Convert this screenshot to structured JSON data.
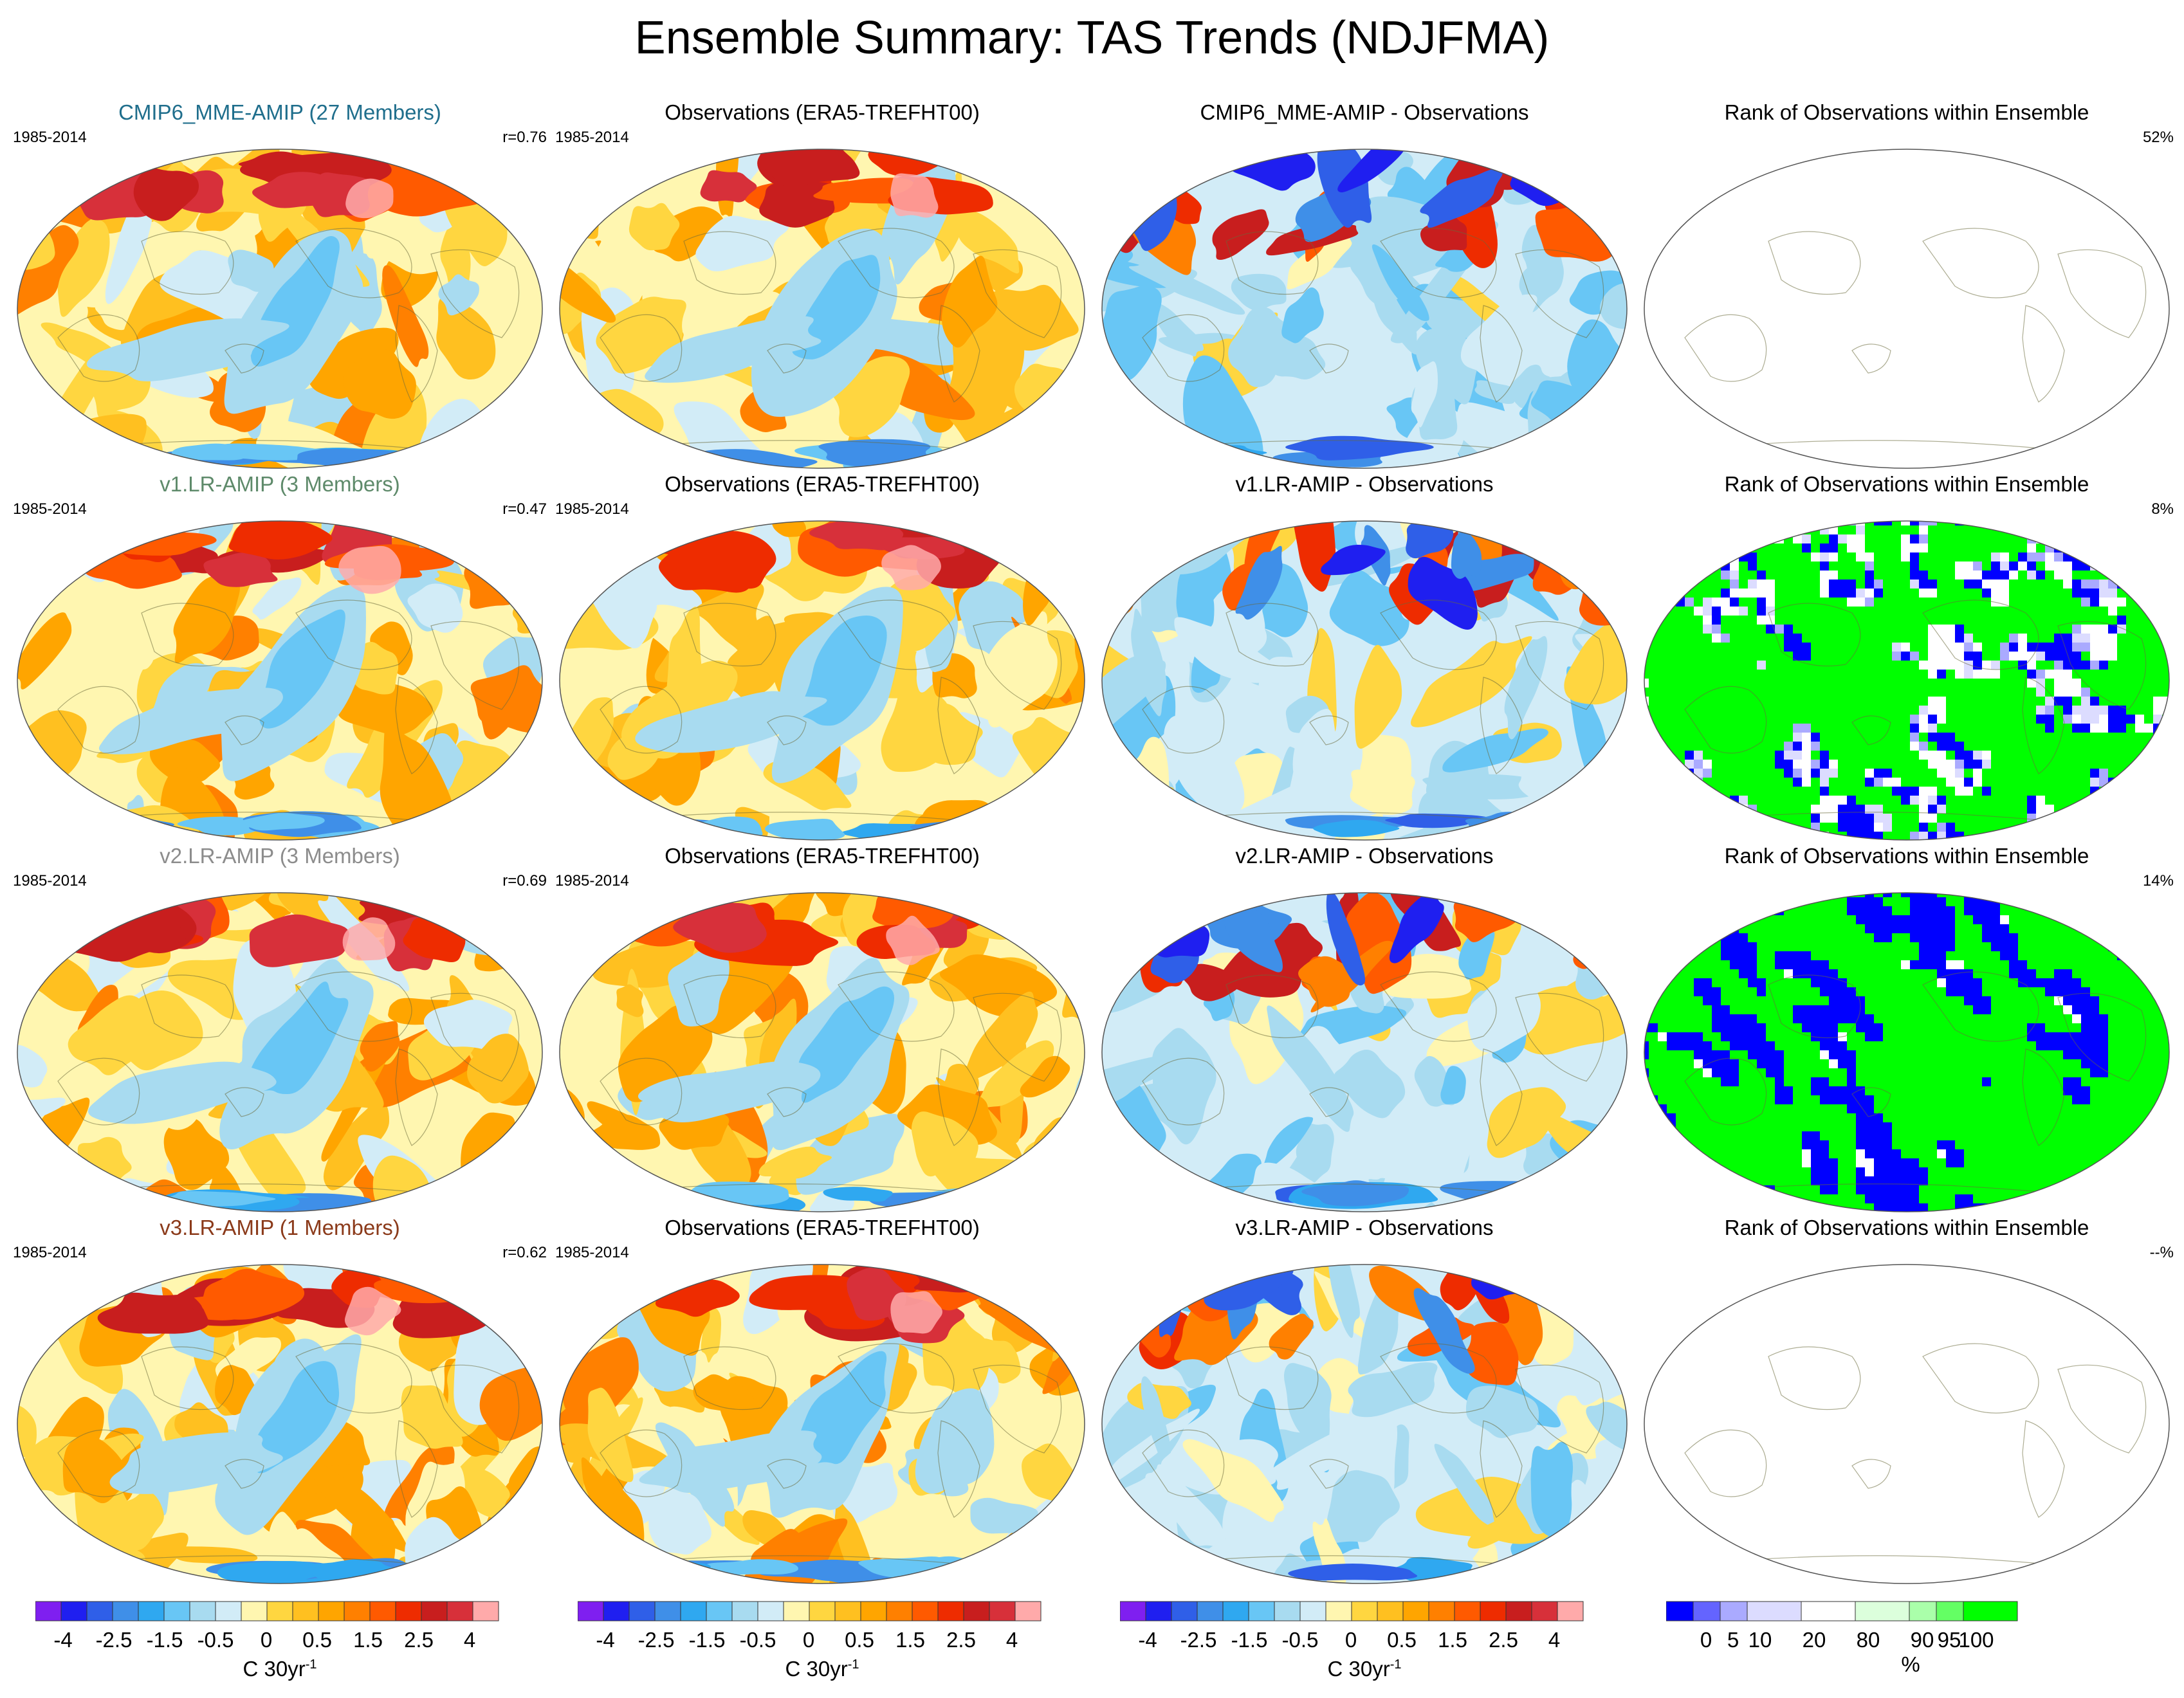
{
  "title": "Ensemble Summary: TAS Trends (NDJFMA)",
  "colors": {
    "trend": [
      "#7f1ff0",
      "#1f1ff0",
      "#2f5fe8",
      "#3f8fe8",
      "#2fa8f0",
      "#68c6f5",
      "#a8dbf0",
      "#d2ecf7",
      "#fff6b0",
      "#ffd640",
      "#ffc020",
      "#ffa500",
      "#ff8000",
      "#ff5a00",
      "#ee2c00",
      "#c81e1e",
      "#d7303a",
      "#ffaaaa"
    ],
    "rank": [
      "#0000ff",
      "#6464ff",
      "#aaaaff",
      "#dcdcff",
      "#ffffff",
      "#dcffdc",
      "#aaffaa",
      "#64ff64",
      "#00ff00"
    ]
  },
  "rows": [
    {
      "model": {
        "title": "CMIP6_MME-AMIP (27 Members)",
        "title_color": "#1f6e8c",
        "years": "1985-2014",
        "stat": "r=0.76"
      },
      "obs": {
        "title": "Observations (ERA5-TREFHT00)",
        "years": "1985-2014"
      },
      "diff": {
        "title": "CMIP6_MME-AMIP - Observations"
      },
      "rank": {
        "title": "Rank of Observations within Ensemble",
        "stat": "52%"
      }
    },
    {
      "model": {
        "title": "v1.LR-AMIP (3 Members)",
        "title_color": "#5e8a6a",
        "years": "1985-2014",
        "stat": "r=0.47"
      },
      "obs": {
        "title": "Observations (ERA5-TREFHT00)",
        "years": "1985-2014"
      },
      "diff": {
        "title": "v1.LR-AMIP - Observations"
      },
      "rank": {
        "title": "Rank of Observations within Ensemble",
        "stat": "8%"
      }
    },
    {
      "model": {
        "title": "v2.LR-AMIP (3 Members)",
        "title_color": "#8c8c8c",
        "years": "1985-2014",
        "stat": "r=0.69"
      },
      "obs": {
        "title": "Observations (ERA5-TREFHT00)",
        "years": "1985-2014"
      },
      "diff": {
        "title": "v2.LR-AMIP - Observations"
      },
      "rank": {
        "title": "Rank of Observations within Ensemble",
        "stat": "14%"
      }
    },
    {
      "model": {
        "title": "v3.LR-AMIP (1 Members)",
        "title_color": "#8b3a1a",
        "years": "1985-2014",
        "stat": "r=0.62"
      },
      "obs": {
        "title": "Observations (ERA5-TREFHT00)",
        "years": "1985-2014"
      },
      "diff": {
        "title": "v3.LR-AMIP - Observations"
      },
      "rank": {
        "title": "Rank of Observations within Ensemble",
        "stat": "--%"
      }
    }
  ],
  "colorbars": {
    "trend": {
      "labels": [
        "-4",
        "-2.5",
        "-1.5",
        "-0.5",
        "0",
        "0.5",
        "1.5",
        "2.5",
        "4"
      ],
      "unit": "C 30yr",
      "unit_exp": "-1"
    },
    "rank": {
      "labels": [
        "0",
        "5",
        "10",
        "20",
        "80",
        "90",
        "95",
        "100"
      ],
      "unit": "%"
    }
  }
}
